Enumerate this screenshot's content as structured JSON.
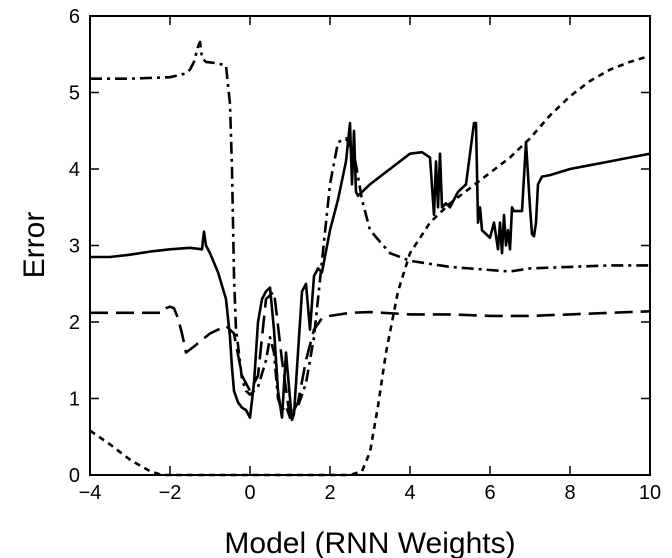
{
  "chart_data": {
    "type": "line",
    "title": "",
    "xlabel": "Model (RNN Weights)",
    "ylabel": "Error",
    "xlim": [
      -4,
      10
    ],
    "ylim": [
      0,
      6
    ],
    "xticks": [
      -4,
      -2,
      0,
      2,
      4,
      6,
      8,
      10
    ],
    "yticks": [
      0,
      1,
      2,
      3,
      4,
      5,
      6
    ],
    "grid": false,
    "legend": "none",
    "series": [
      {
        "style": "solid",
        "color": "#000000",
        "x": [
          -4,
          -3.5,
          -3,
          -2.5,
          -2,
          -1.5,
          -1.2,
          -1.15,
          -1.1,
          -1.0,
          -0.8,
          -0.6,
          -0.5,
          -0.45,
          -0.4,
          -0.3,
          -0.2,
          -0.1,
          0,
          0.1,
          0.2,
          0.3,
          0.4,
          0.5,
          0.6,
          0.7,
          0.8,
          0.9,
          1.0,
          1.05,
          1.1,
          1.2,
          1.3,
          1.4,
          1.5,
          1.6,
          1.7,
          1.8,
          2.0,
          2.2,
          2.4,
          2.5,
          2.55,
          2.6,
          2.65,
          2.7,
          3.0,
          3.5,
          4.0,
          4.3,
          4.5,
          4.6,
          4.65,
          4.7,
          4.75,
          4.8,
          4.9,
          5.0,
          5.2,
          5.4,
          5.6,
          5.65,
          5.7,
          5.75,
          5.8,
          5.9,
          6.0,
          6.1,
          6.2,
          6.25,
          6.3,
          6.35,
          6.4,
          6.45,
          6.5,
          6.55,
          6.6,
          6.7,
          6.8,
          6.9,
          7.0,
          7.05,
          7.1,
          7.15,
          7.2,
          7.3,
          7.5,
          8.0,
          8.5,
          9.0,
          9.5,
          10.0
        ],
        "values": [
          2.85,
          2.85,
          2.88,
          2.92,
          2.95,
          2.97,
          2.95,
          3.18,
          3.0,
          2.9,
          2.65,
          2.3,
          1.8,
          1.4,
          1.1,
          0.95,
          0.88,
          0.85,
          0.75,
          1.2,
          2.0,
          2.3,
          2.4,
          2.45,
          1.9,
          1.1,
          0.75,
          1.6,
          1.0,
          0.72,
          0.8,
          1.6,
          2.4,
          2.5,
          1.9,
          2.6,
          2.7,
          2.65,
          3.2,
          3.6,
          4.1,
          4.6,
          3.8,
          4.5,
          3.7,
          3.65,
          3.8,
          4.0,
          4.2,
          4.22,
          4.15,
          3.4,
          4.1,
          3.5,
          4.2,
          3.5,
          3.55,
          3.5,
          3.7,
          3.8,
          4.6,
          4.6,
          3.3,
          3.5,
          3.2,
          3.15,
          3.1,
          3.3,
          2.95,
          3.3,
          2.9,
          3.4,
          3.0,
          3.2,
          2.95,
          3.5,
          3.45,
          3.45,
          3.45,
          4.35,
          3.5,
          3.15,
          3.12,
          3.3,
          3.8,
          3.9,
          3.92,
          4.0,
          4.05,
          4.1,
          4.15,
          4.2
        ]
      },
      {
        "style": "long-dash",
        "color": "#000000",
        "x": [
          -4,
          -3,
          -2.2,
          -2.1,
          -2.0,
          -1.9,
          -1.8,
          -1.7,
          -1.6,
          -1.4,
          -1.0,
          -0.6,
          -0.4,
          -0.2,
          0,
          0.2,
          0.4,
          0.6,
          0.8,
          1.0,
          1.2,
          1.4,
          1.6,
          1.8,
          2.0,
          2.5,
          3.0,
          4.0,
          5.0,
          6.0,
          7.0,
          8.0,
          9.0,
          10.0
        ],
        "values": [
          2.12,
          2.12,
          2.12,
          2.18,
          2.2,
          2.18,
          2.05,
          1.85,
          1.6,
          1.68,
          1.85,
          1.95,
          1.85,
          1.3,
          1.1,
          1.3,
          2.3,
          2.4,
          1.5,
          0.75,
          0.95,
          1.5,
          1.9,
          2.05,
          2.08,
          2.12,
          2.13,
          2.1,
          2.1,
          2.08,
          2.08,
          2.1,
          2.12,
          2.14
        ]
      },
      {
        "style": "dash-dot",
        "color": "#000000",
        "x": [
          -4,
          -3,
          -2,
          -1.6,
          -1.5,
          -1.4,
          -1.3,
          -1.25,
          -1.2,
          -1.1,
          -0.8,
          -0.6,
          -0.5,
          -0.45,
          -0.4,
          -0.35,
          -0.3,
          -0.2,
          -0.1,
          0,
          0.2,
          0.4,
          0.5,
          0.6,
          0.7,
          0.8,
          0.9,
          1.0,
          1.1,
          1.2,
          1.4,
          1.6,
          1.8,
          2.0,
          2.2,
          2.4,
          2.6,
          2.8,
          3.0,
          3.5,
          4.0,
          5.0,
          6.0,
          6.5,
          7.0,
          8.0,
          9.0,
          10.0
        ],
        "values": [
          5.18,
          5.18,
          5.2,
          5.25,
          5.3,
          5.4,
          5.6,
          5.66,
          5.45,
          5.4,
          5.38,
          5.35,
          4.85,
          4.0,
          2.6,
          1.9,
          1.7,
          1.25,
          1.1,
          1.05,
          1.15,
          1.5,
          1.8,
          1.6,
          1.0,
          0.85,
          0.9,
          0.75,
          0.85,
          0.9,
          1.2,
          1.8,
          2.8,
          3.8,
          4.35,
          4.4,
          4.2,
          3.6,
          3.2,
          2.9,
          2.8,
          2.72,
          2.68,
          2.66,
          2.7,
          2.72,
          2.74,
          2.74
        ]
      },
      {
        "style": "short-dash",
        "color": "#000000",
        "x": [
          -4,
          -3.5,
          -3,
          -2.5,
          -2.2,
          -2.0,
          -1.5,
          -1.0,
          0,
          1.0,
          2.0,
          2.5,
          2.8,
          3.0,
          3.2,
          3.4,
          3.7,
          4.0,
          4.5,
          5.0,
          5.5,
          6.0,
          6.5,
          7.0,
          7.5,
          8.0,
          8.5,
          9.0,
          9.5,
          10.0
        ],
        "values": [
          0.58,
          0.4,
          0.2,
          0.05,
          0.0,
          0.0,
          0.0,
          0.0,
          0.0,
          0.0,
          0.0,
          0.0,
          0.05,
          0.3,
          0.9,
          1.6,
          2.4,
          2.9,
          3.3,
          3.55,
          3.75,
          3.95,
          4.15,
          4.4,
          4.7,
          4.95,
          5.15,
          5.3,
          5.4,
          5.48
        ]
      }
    ]
  }
}
